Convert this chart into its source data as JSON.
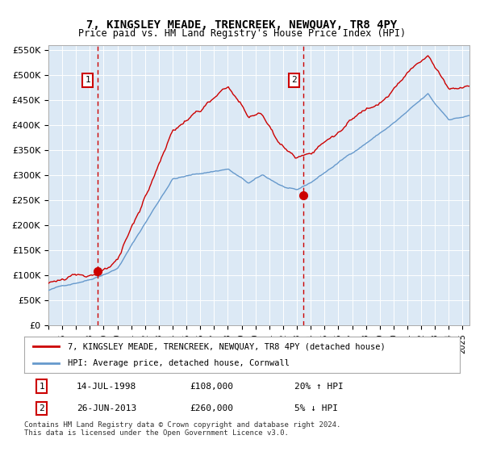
{
  "title": "7, KINGSLEY MEADE, TRENCREEK, NEWQUAY, TR8 4PY",
  "subtitle": "Price paid vs. HM Land Registry's House Price Index (HPI)",
  "legend_red": "7, KINGSLEY MEADE, TRENCREEK, NEWQUAY, TR8 4PY (detached house)",
  "legend_blue": "HPI: Average price, detached house, Cornwall",
  "sale1_date": "14-JUL-1998",
  "sale1_price": "£108,000",
  "sale1_hpi": "20% ↑ HPI",
  "sale2_date": "26-JUN-2013",
  "sale2_price": "£260,000",
  "sale2_hpi": "5% ↓ HPI",
  "footer": "Contains HM Land Registry data © Crown copyright and database right 2024.\nThis data is licensed under the Open Government Licence v3.0.",
  "bg_color": "#dce9f5",
  "red_color": "#cc0000",
  "blue_color": "#6699cc",
  "dashed_color": "#cc0000",
  "ylim": [
    0,
    560000
  ],
  "yticks": [
    0,
    50000,
    100000,
    150000,
    200000,
    250000,
    300000,
    350000,
    400000,
    450000,
    500000,
    550000
  ],
  "sale1_year": 1998.54,
  "sale1_value": 108000,
  "sale2_year": 2013.48,
  "sale2_value": 260000
}
